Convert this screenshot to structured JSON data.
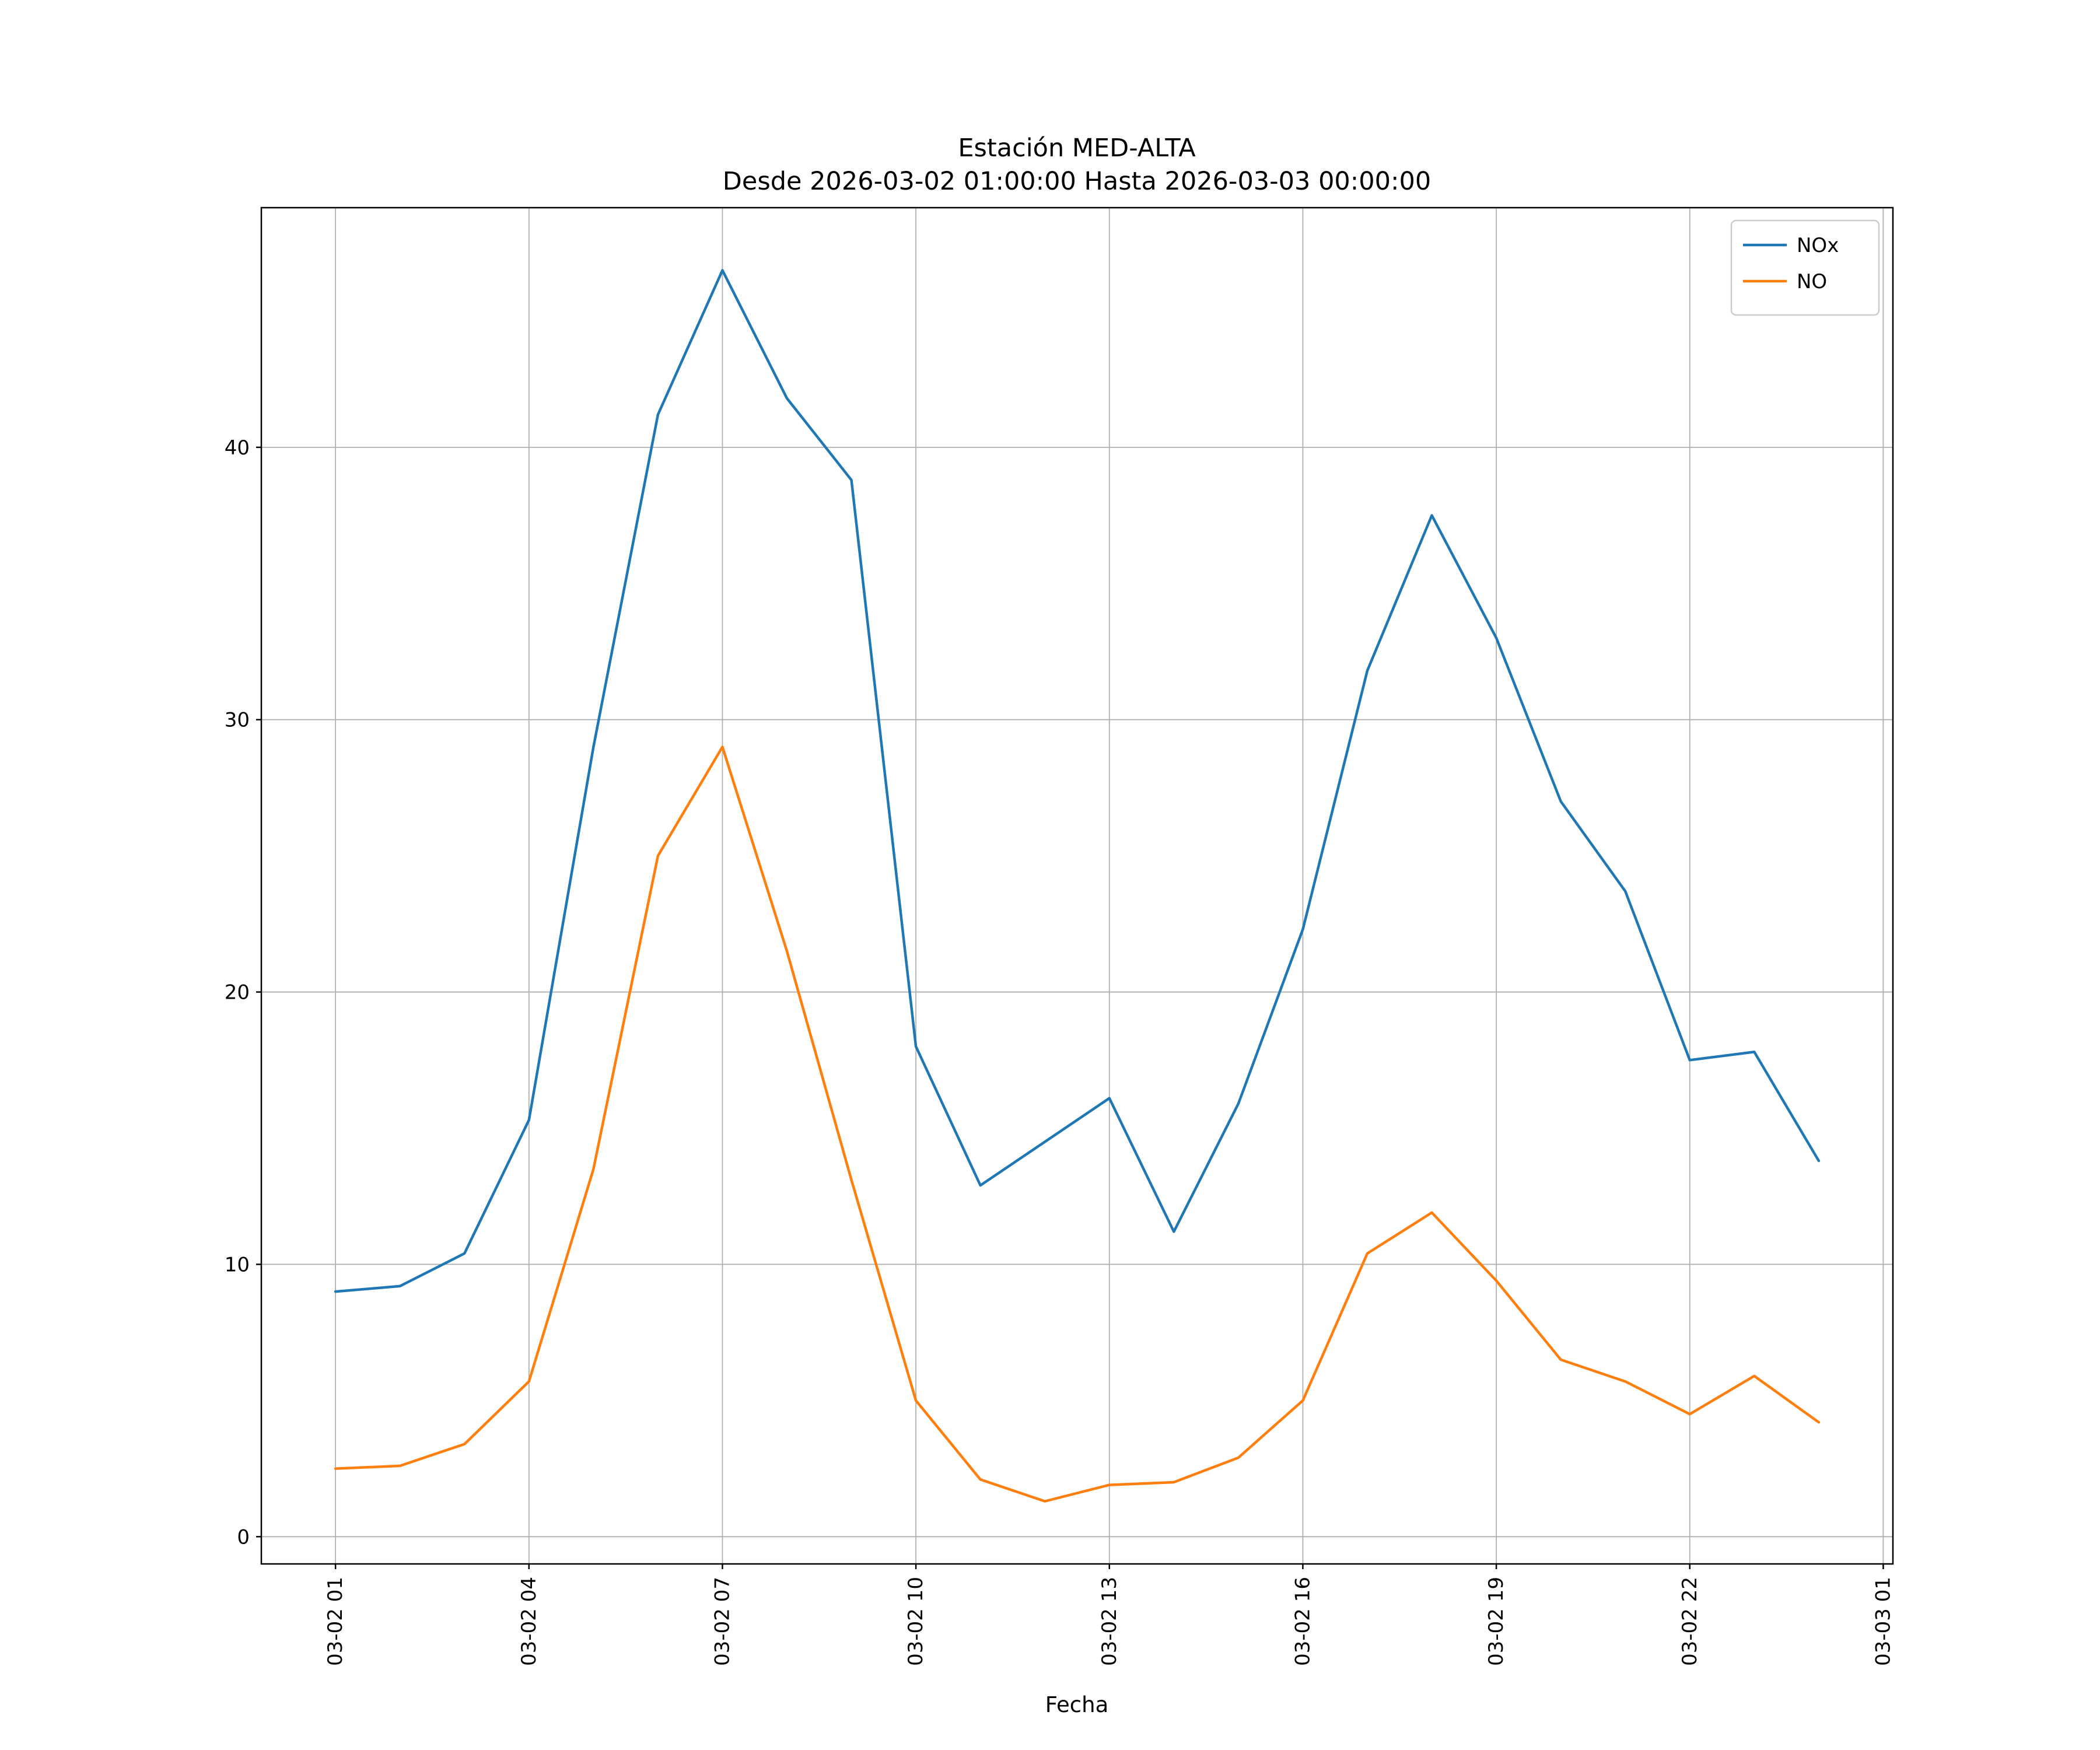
{
  "figure": {
    "background": "#ffffff"
  },
  "chart_data": {
    "type": "line",
    "title": "Estación MED-ALTA",
    "subtitle": "Desde 2026-03-02 01:00:00 Hasta 2026-03-03 00:00:00",
    "xlabel": "Fecha",
    "ylabel": "",
    "x_hours": [
      1,
      2,
      3,
      4,
      5,
      6,
      7,
      8,
      9,
      10,
      11,
      12,
      13,
      14,
      15,
      16,
      17,
      18,
      19,
      20,
      21,
      22,
      23,
      24
    ],
    "series": [
      {
        "name": "NOx",
        "color": "#1f77b4",
        "values": [
          9.0,
          9.2,
          10.4,
          15.3,
          29.0,
          41.2,
          46.5,
          41.8,
          38.8,
          18.0,
          12.9,
          14.5,
          16.1,
          11.2,
          15.9,
          22.3,
          31.8,
          37.5,
          33.0,
          27.0,
          23.7,
          17.5,
          17.8,
          13.8
        ]
      },
      {
        "name": "NO",
        "color": "#ff7f0e",
        "values": [
          2.5,
          2.6,
          3.4,
          5.7,
          13.5,
          25.0,
          29.0,
          21.5,
          13.1,
          5.0,
          2.1,
          1.3,
          1.9,
          2.0,
          2.9,
          5.0,
          10.4,
          11.9,
          9.4,
          6.5,
          5.7,
          4.5,
          5.9,
          4.2
        ]
      }
    ],
    "xticks": {
      "positions": [
        1,
        4,
        7,
        10,
        13,
        16,
        19,
        22,
        25
      ],
      "labels": [
        "03-02 01",
        "03-02 04",
        "03-02 07",
        "03-02 10",
        "03-02 13",
        "03-02 16",
        "03-02 19",
        "03-02 22",
        "03-03 01"
      ]
    },
    "yticks": [
      0,
      10,
      20,
      30,
      40
    ],
    "xlim": [
      -0.15,
      25.15
    ],
    "ylim": [
      -1.0,
      48.8
    ],
    "grid": true,
    "grid_color": "#b0b0b0",
    "axis_color": "#000000",
    "legend_position": "upper right",
    "legend_border_color": "#cccccc"
  }
}
